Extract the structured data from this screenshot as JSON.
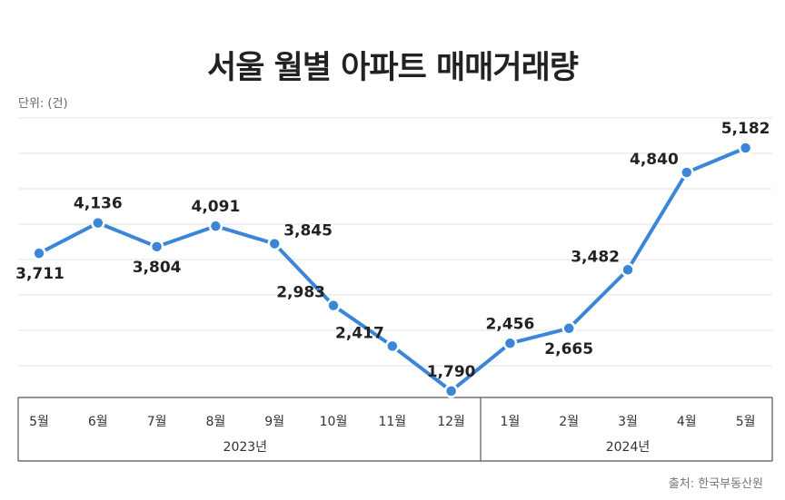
{
  "title": "서울 월별 아파트 매매거래량",
  "unit_label": "단위: (건)",
  "source": "출처: 한국부동산원",
  "colors": {
    "line": "#3b86d6",
    "grid": "#e3e3e3",
    "axis": "#555555"
  },
  "chart_data": {
    "type": "line",
    "categories": [
      "5월",
      "6월",
      "7월",
      "8월",
      "9월",
      "10월",
      "11월",
      "12월",
      "1월",
      "2월",
      "3월",
      "4월",
      "5월"
    ],
    "values": [
      3711,
      4136,
      3804,
      4091,
      3845,
      2983,
      2417,
      1790,
      2456,
      2665,
      3482,
      4840,
      5182
    ],
    "value_labels": [
      "3,711",
      "4,136",
      "3,804",
      "4,091",
      "3,845",
      "2,983",
      "2,417",
      "1,790",
      "2,456",
      "2,665",
      "3,482",
      "4,840",
      "5,182"
    ],
    "label_position": [
      "below",
      "above",
      "below",
      "above",
      "right",
      "left",
      "left",
      "above",
      "above",
      "below",
      "left",
      "left",
      "above"
    ],
    "year_groups": [
      {
        "label": "2023년",
        "start": 0,
        "end": 7
      },
      {
        "label": "2024년",
        "start": 8,
        "end": 12
      }
    ],
    "ylim": [
      1700,
      5600
    ],
    "grid": true,
    "legend": "none"
  }
}
